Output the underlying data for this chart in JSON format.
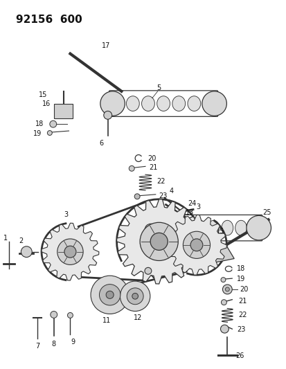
{
  "title": "92156  600",
  "bg_color": "#ffffff",
  "line_color": "#333333",
  "fig_width": 4.14,
  "fig_height": 5.33,
  "dpi": 100,
  "title_fontsize": 11,
  "label_fontsize": 7
}
